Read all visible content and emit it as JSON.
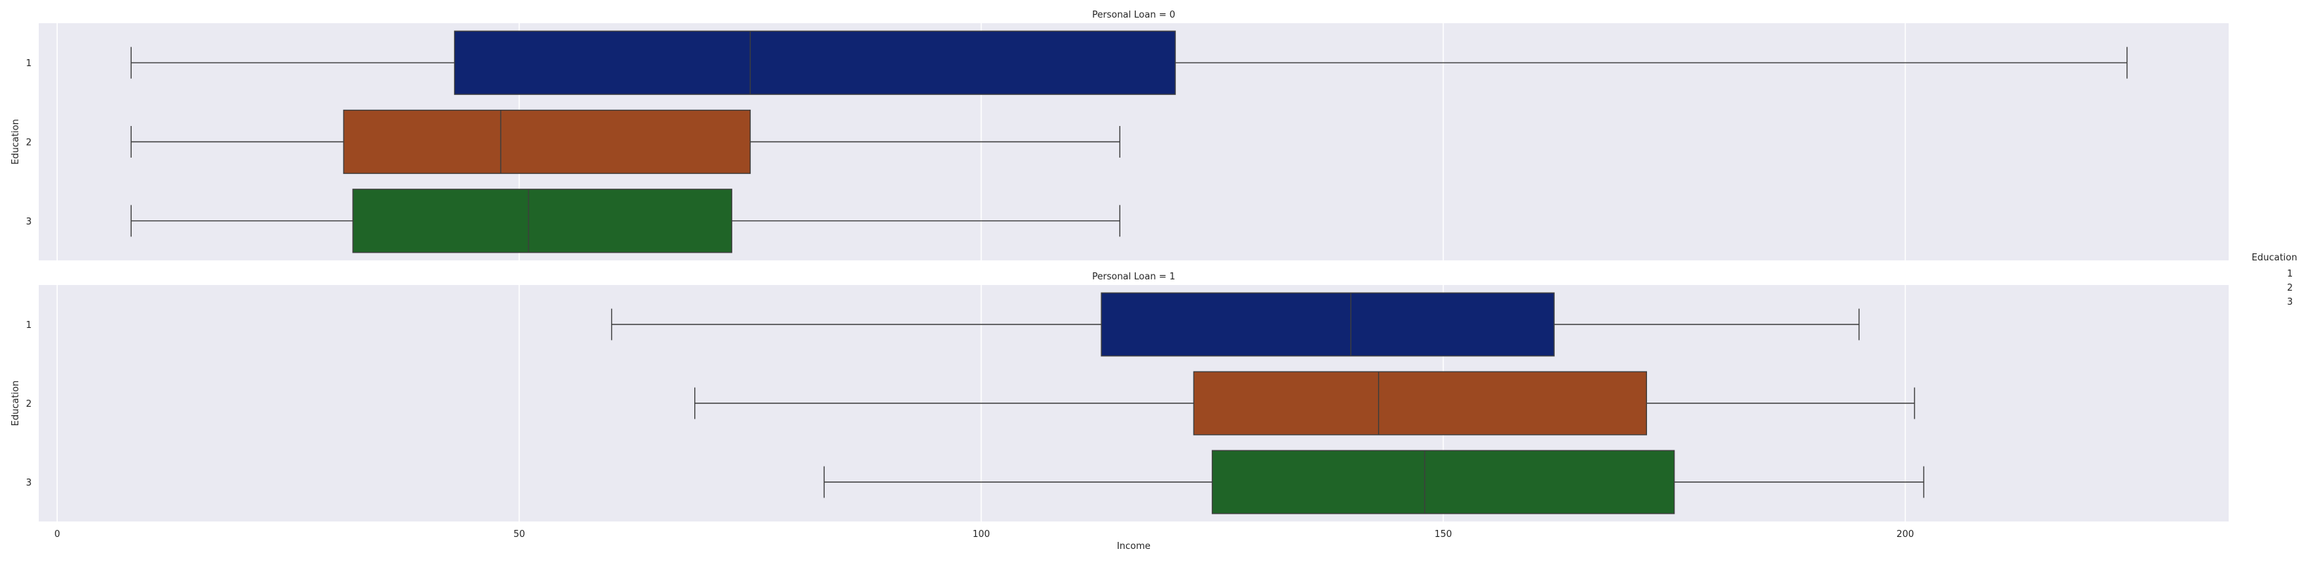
{
  "chart_data": {
    "type": "boxplot",
    "orientation": "horizontal",
    "xlabel": "Income",
    "ylabel": "Education",
    "xlim": [
      -2,
      235
    ],
    "xticks": [
      0,
      50,
      100,
      150,
      200
    ],
    "grid": true,
    "legend": {
      "title": "Education",
      "entries": [
        "1",
        "2",
        "3"
      ],
      "placement": "right"
    },
    "colors": {
      "1": "#0f2471",
      "2": "#9c4921",
      "3": "#1f6427"
    },
    "facets": [
      {
        "title": "Personal Loan = 0",
        "categories": [
          "1",
          "2",
          "3"
        ],
        "boxes": [
          {
            "category": "1",
            "whislo": 8,
            "q1": 43,
            "median": 75,
            "q3": 121,
            "whishi": 224
          },
          {
            "category": "2",
            "whislo": 8,
            "q1": 31,
            "median": 48,
            "q3": 75,
            "whishi": 115
          },
          {
            "category": "3",
            "whislo": 8,
            "q1": 32,
            "median": 51,
            "q3": 73,
            "whishi": 115
          }
        ]
      },
      {
        "title": "Personal Loan = 1",
        "categories": [
          "1",
          "2",
          "3"
        ],
        "boxes": [
          {
            "category": "1",
            "whislo": 60,
            "q1": 113,
            "median": 140,
            "q3": 162,
            "whishi": 195
          },
          {
            "category": "2",
            "whislo": 69,
            "q1": 123,
            "median": 143,
            "q3": 172,
            "whishi": 201
          },
          {
            "category": "3",
            "whislo": 83,
            "q1": 125,
            "median": 148,
            "q3": 175,
            "whishi": 202
          }
        ]
      }
    ]
  }
}
